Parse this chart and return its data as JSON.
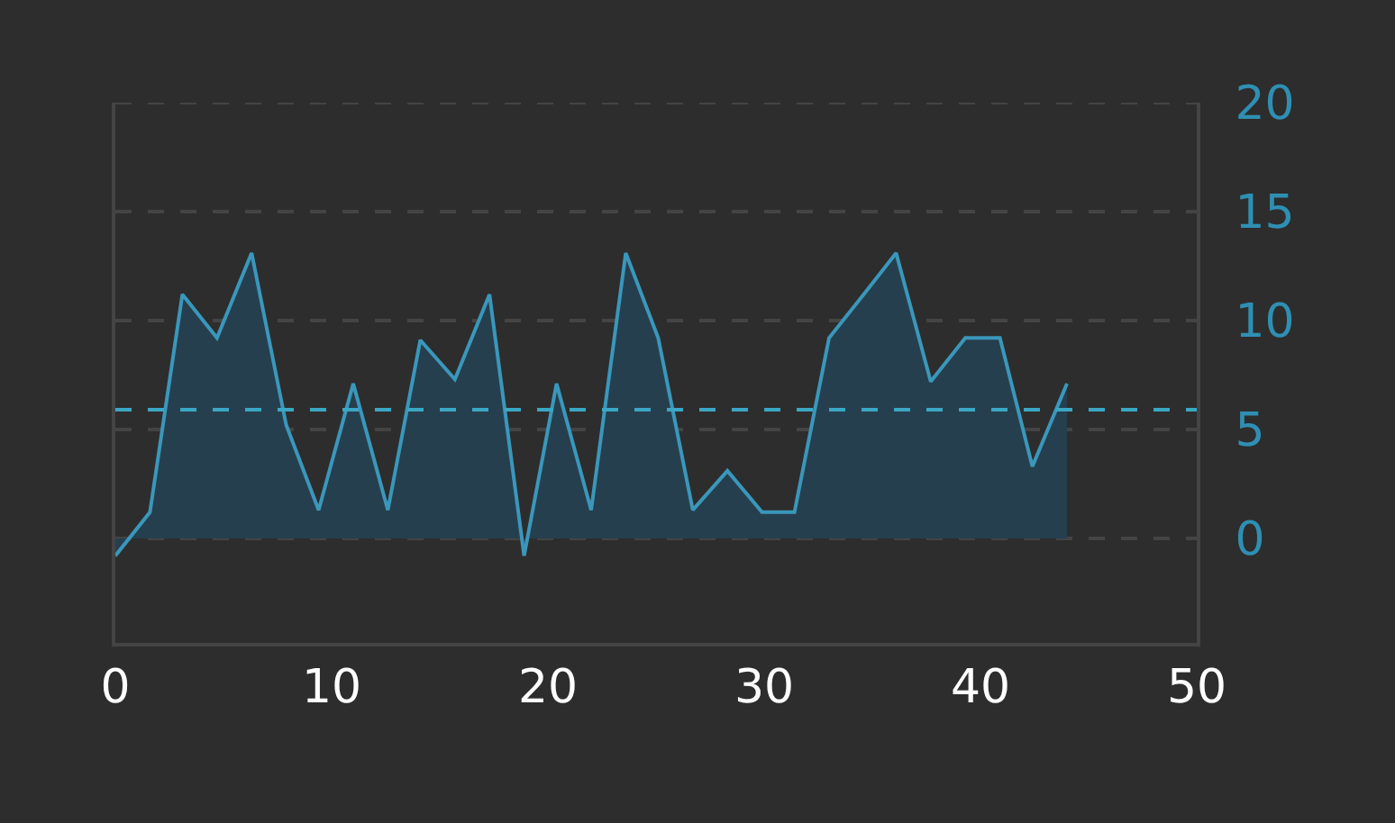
{
  "chart_data": {
    "type": "area",
    "x": [
      0,
      1.6,
      3.1,
      4.7,
      6.3,
      7.9,
      9.4,
      11,
      12.6,
      14.1,
      15.7,
      17.3,
      18.9,
      20.4,
      22,
      23.6,
      25.1,
      26.7,
      28.3,
      29.9,
      31.4,
      33,
      34.6,
      36.1,
      37.7,
      39.3,
      40.9,
      42.4,
      44
    ],
    "series": [
      {
        "color": "#3a97bb",
        "values": [
          -0.8,
          1.2,
          11.2,
          9.2,
          13.1,
          5.2,
          1.3,
          7.1,
          1.3,
          9.1,
          7.3,
          11.2,
          -0.8,
          7.1,
          1.3,
          13.1,
          9.2,
          1.3,
          3.1,
          1.2,
          1.2,
          9.2,
          11.2,
          13.1,
          7.2,
          9.2,
          9.2,
          3.3,
          7.1
        ]
      }
    ],
    "xlim": [
      0,
      50
    ],
    "xticks": [
      0,
      10,
      20,
      30,
      40,
      50
    ],
    "ylim": [
      -4.8,
      20
    ],
    "yticks": [
      0,
      5,
      10,
      15,
      20
    ],
    "ref_lines": [
      {
        "axis": "y",
        "value": 5.9,
        "color": "#3aa7c4",
        "line_style": "dashed"
      }
    ],
    "grid": "y",
    "marker": "none",
    "line_style": "solid"
  }
}
